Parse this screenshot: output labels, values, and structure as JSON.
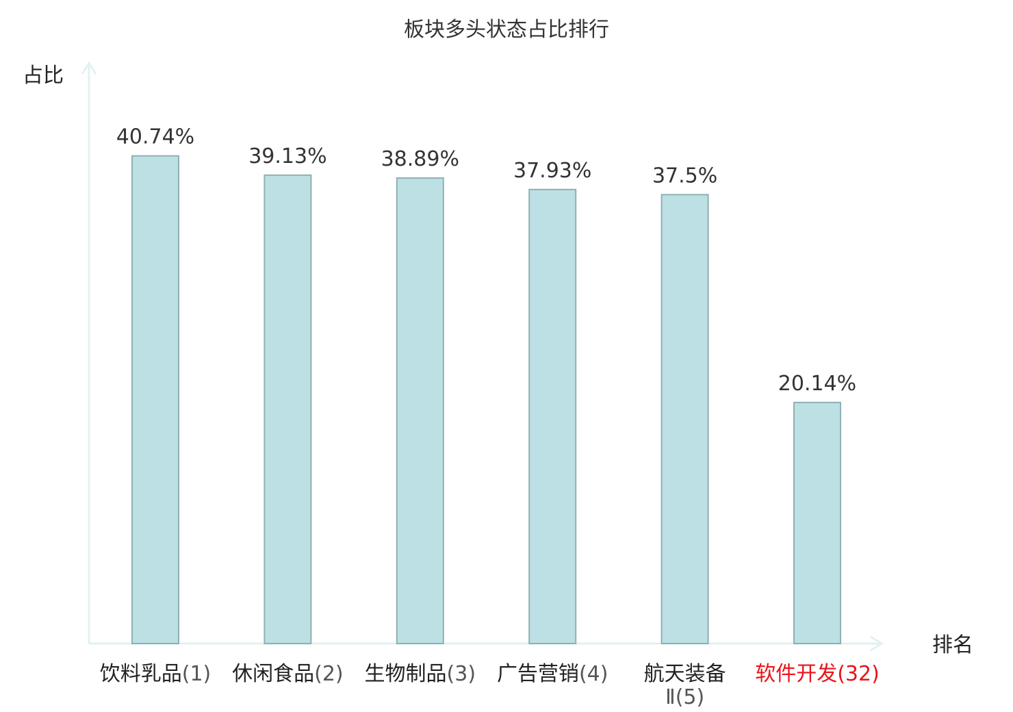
{
  "chart_data": {
    "type": "bar",
    "title": "板块多头状态占比排行",
    "xlabel": "排名",
    "ylabel": "占比",
    "categories": [
      {
        "name": "饮料乳品",
        "rank": "(1)"
      },
      {
        "name": "休闲食品",
        "rank": "(2)"
      },
      {
        "name": "生物制品",
        "rank": "(3)"
      },
      {
        "name": "广告营销",
        "rank": "(4)"
      },
      {
        "name": "航天装备Ⅱ",
        "rank": "(5)"
      },
      {
        "name": "软件开发",
        "rank": "(32)"
      }
    ],
    "values": [
      40.74,
      39.13,
      38.89,
      37.93,
      37.5,
      20.14
    ],
    "value_labels": [
      "40.74%",
      "39.13%",
      "38.89%",
      "37.93%",
      "37.5%",
      "20.14%"
    ],
    "highlight_index": 5,
    "ylim": [
      0,
      48.5
    ],
    "grid": false,
    "colors": {
      "bar_fill": "#bce0e3",
      "bar_stroke": "#8fb0b2",
      "axis": "#e0f2f1",
      "highlight_text": "#e8141a",
      "text": "#333333"
    }
  }
}
